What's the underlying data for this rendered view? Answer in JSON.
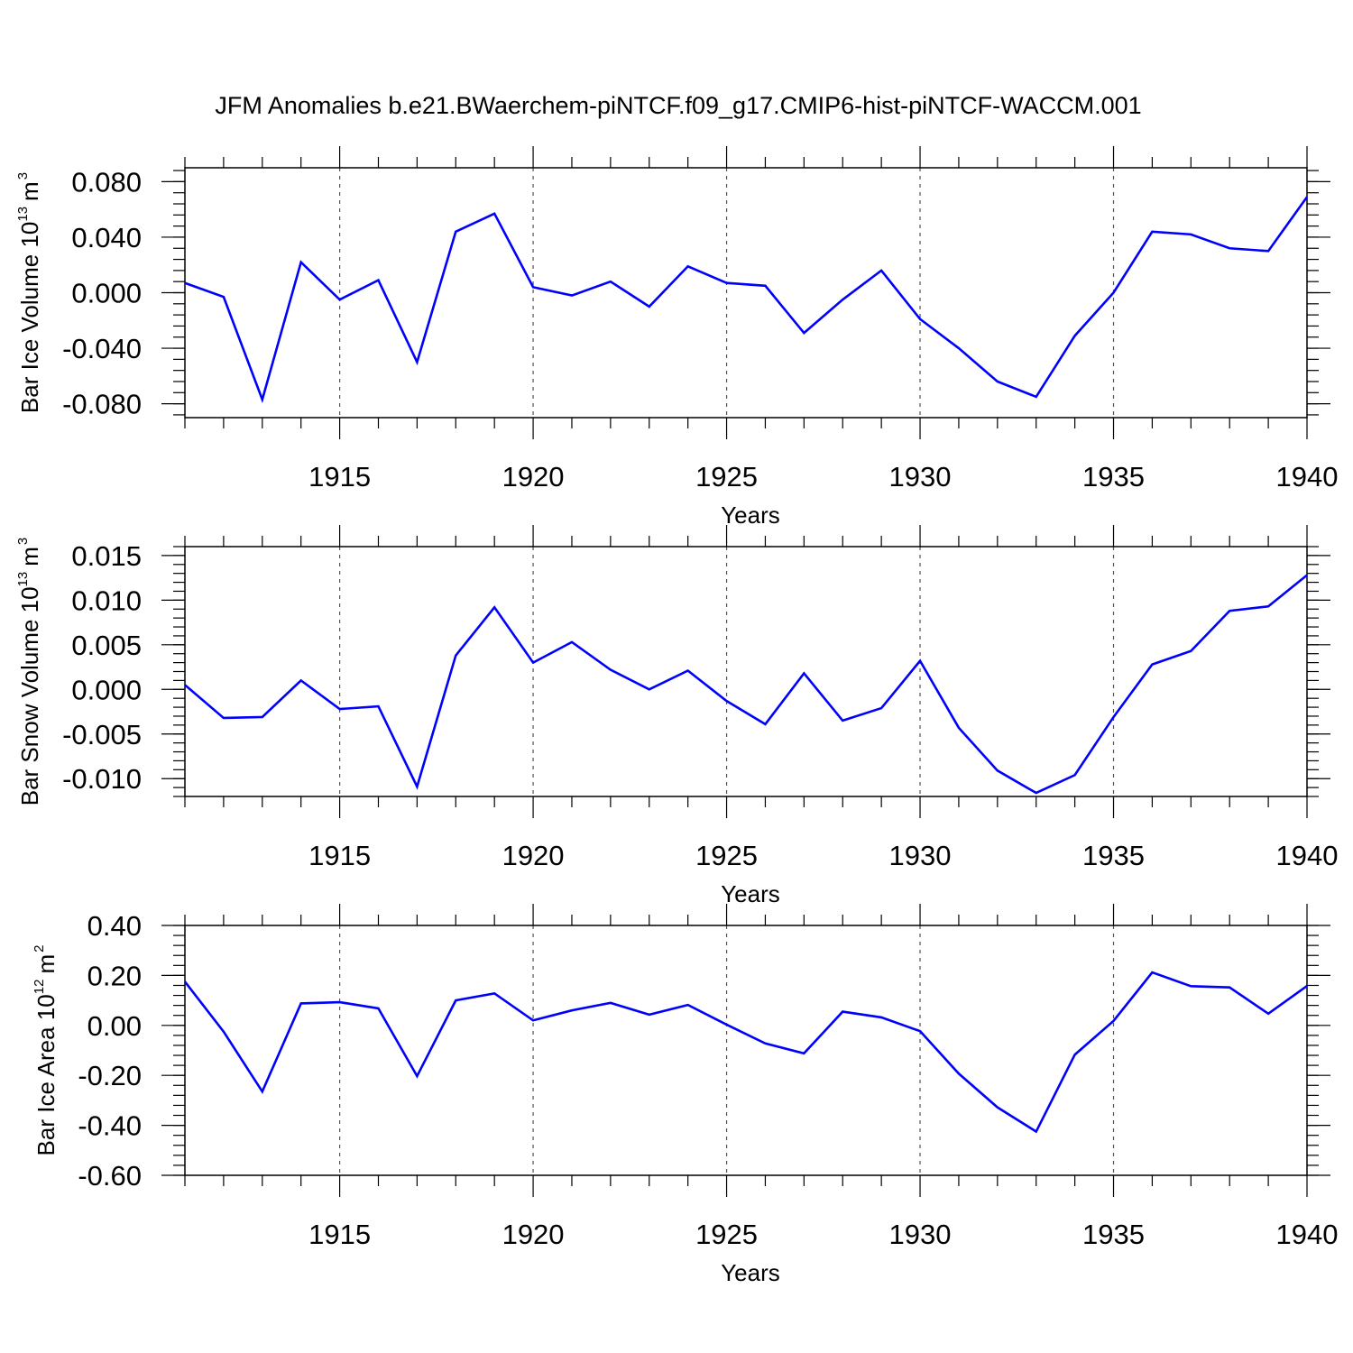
{
  "figure_title": "JFM Anomalies b.e21.BWaerchem-piNTCF.f09_g17.CMIP6-hist-piNTCF-WACCM.001",
  "colors": {
    "line": "#0000ff",
    "axis": "#000000",
    "grid": "#555555"
  },
  "chart_data": [
    {
      "type": "line",
      "title": "",
      "ylabel": {
        "text": "Bar Ice Volume 10",
        "exp": "13",
        "unit": "m",
        "unit_exp": "3"
      },
      "xlabel": "Years",
      "xlim": [
        1911,
        1940
      ],
      "ylim": [
        -0.09,
        0.09
      ],
      "yticks": [
        -0.08,
        -0.04,
        0.0,
        0.04,
        0.08
      ],
      "ytick_labels": [
        "-0.080",
        "-0.040",
        "0.000",
        "0.040",
        "0.080"
      ],
      "yminor_step": 0.008,
      "xticks": [
        1915,
        1920,
        1925,
        1930,
        1935,
        1940
      ],
      "xtick_labels": [
        "1915",
        "1920",
        "1925",
        "1930",
        "1935",
        "1940"
      ],
      "x": [
        1911,
        1912,
        1913,
        1914,
        1915,
        1916,
        1917,
        1918,
        1919,
        1920,
        1921,
        1922,
        1923,
        1924,
        1925,
        1926,
        1927,
        1928,
        1929,
        1930,
        1931,
        1932,
        1933,
        1934,
        1935,
        1936,
        1937,
        1938,
        1939,
        1940
      ],
      "series": [
        {
          "name": "Bar Ice Volume",
          "values": [
            0.007,
            -0.003,
            -0.077,
            0.022,
            -0.005,
            0.009,
            -0.05,
            0.044,
            0.057,
            0.004,
            -0.002,
            0.008,
            -0.01,
            0.019,
            0.007,
            0.005,
            -0.029,
            -0.005,
            0.016,
            -0.019,
            -0.04,
            -0.064,
            -0.075,
            -0.031,
            0.0,
            0.044,
            0.042,
            0.032,
            0.03,
            0.069
          ]
        }
      ]
    },
    {
      "type": "line",
      "title": "",
      "ylabel": {
        "text": "Bar Snow Volume 10",
        "exp": "13",
        "unit": "m",
        "unit_exp": "3"
      },
      "xlabel": "Years",
      "xlim": [
        1911,
        1940
      ],
      "ylim": [
        -0.012,
        0.016
      ],
      "yticks": [
        -0.01,
        -0.005,
        0.0,
        0.005,
        0.01,
        0.015
      ],
      "ytick_labels": [
        "-0.010",
        "-0.005",
        "0.000",
        "0.005",
        "0.010",
        "0.015"
      ],
      "yminor_step": 0.001,
      "xticks": [
        1915,
        1920,
        1925,
        1930,
        1935,
        1940
      ],
      "xtick_labels": [
        "1915",
        "1920",
        "1925",
        "1930",
        "1935",
        "1940"
      ],
      "x": [
        1911,
        1912,
        1913,
        1914,
        1915,
        1916,
        1917,
        1918,
        1919,
        1920,
        1921,
        1922,
        1923,
        1924,
        1925,
        1926,
        1927,
        1928,
        1929,
        1930,
        1931,
        1932,
        1933,
        1934,
        1935,
        1936,
        1937,
        1938,
        1939,
        1940
      ],
      "series": [
        {
          "name": "Bar Snow Volume",
          "values": [
            0.0005,
            -0.0032,
            -0.0031,
            0.001,
            -0.0022,
            -0.0019,
            -0.0109,
            0.0038,
            0.0092,
            0.003,
            0.0053,
            0.0022,
            0.0,
            0.0021,
            -0.0013,
            -0.0039,
            0.0018,
            -0.0035,
            -0.0021,
            0.0032,
            -0.0043,
            -0.0091,
            -0.0116,
            -0.0096,
            -0.0031,
            0.0028,
            0.0043,
            0.0088,
            0.0093,
            0.0128
          ]
        }
      ]
    },
    {
      "type": "line",
      "title": "",
      "ylabel": {
        "text": "Bar Ice Area 10",
        "exp": "12",
        "unit": "m",
        "unit_exp": "2"
      },
      "xlabel": "Years",
      "xlim": [
        1911,
        1940
      ],
      "ylim": [
        -0.6,
        0.4
      ],
      "yticks": [
        -0.6,
        -0.4,
        -0.2,
        0.0,
        0.2,
        0.4
      ],
      "ytick_labels": [
        "-0.60",
        "-0.40",
        "-0.20",
        "0.00",
        "0.20",
        "0.40"
      ],
      "yminor_step": 0.04,
      "xticks": [
        1915,
        1920,
        1925,
        1930,
        1935,
        1940
      ],
      "xtick_labels": [
        "1915",
        "1920",
        "1925",
        "1930",
        "1935",
        "1940"
      ],
      "x": [
        1911,
        1912,
        1913,
        1914,
        1915,
        1916,
        1917,
        1918,
        1919,
        1920,
        1921,
        1922,
        1923,
        1924,
        1925,
        1926,
        1927,
        1928,
        1929,
        1930,
        1931,
        1932,
        1933,
        1934,
        1935,
        1936,
        1937,
        1938,
        1939,
        1940
      ],
      "series": [
        {
          "name": "Bar Ice Area",
          "values": [
            0.175,
            -0.025,
            -0.265,
            0.088,
            0.093,
            0.068,
            -0.203,
            0.1,
            0.128,
            0.02,
            0.06,
            0.09,
            0.043,
            0.082,
            0.003,
            -0.072,
            -0.112,
            0.055,
            0.032,
            -0.023,
            -0.193,
            -0.328,
            -0.425,
            -0.117,
            0.018,
            0.212,
            0.157,
            0.152,
            0.047,
            0.158
          ]
        }
      ]
    }
  ]
}
